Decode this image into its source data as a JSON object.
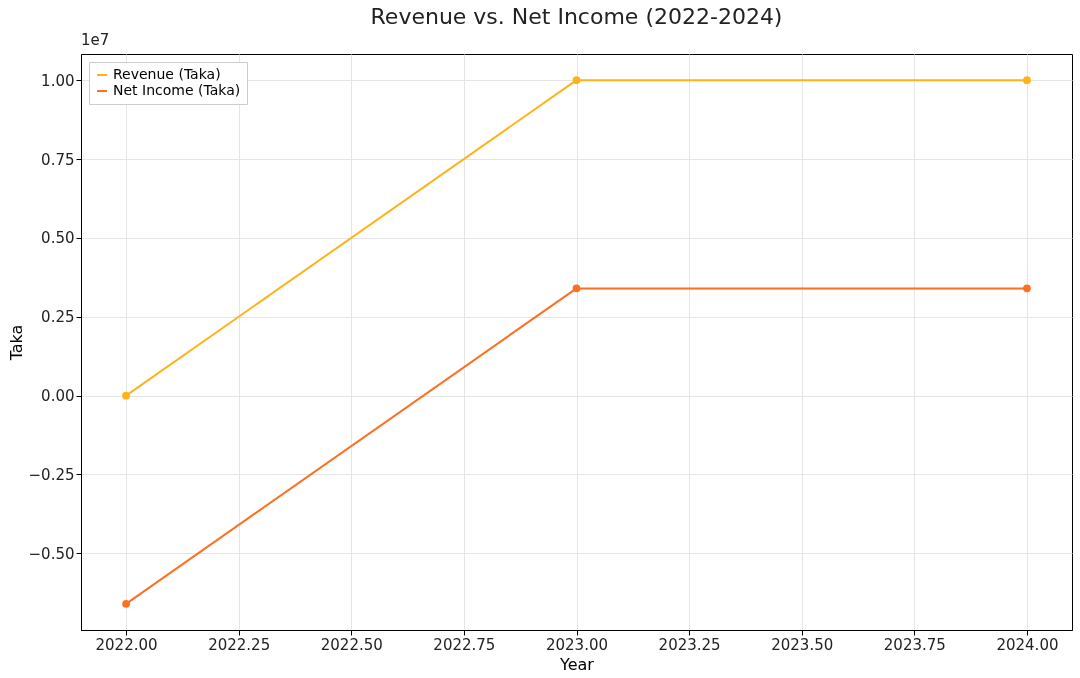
{
  "chart_data": {
    "type": "line",
    "title": "Revenue vs. Net Income (2022-2024)",
    "xlabel": "Year",
    "ylabel": "Taka",
    "annotations": [
      "1e7"
    ],
    "x": [
      2022,
      2023,
      2024
    ],
    "series": [
      {
        "name": "Revenue (Taka)",
        "color": "#ffb31a",
        "values": [
          0.0,
          1.0,
          1.0
        ]
      },
      {
        "name": "Net Income (Taka)",
        "color": "#ff6f20",
        "values": [
          -0.66,
          0.34,
          0.34
        ]
      }
    ],
    "xlim": [
      2021.9,
      2024.1
    ],
    "xticks": [
      {
        "value": 2022,
        "label": "2022.00"
      },
      {
        "value": 2022.25,
        "label": "2022.25"
      },
      {
        "value": 2022.5,
        "label": "2022.50"
      },
      {
        "value": 2022.75,
        "label": "2022.75"
      },
      {
        "value": 2023,
        "label": "2023.00"
      },
      {
        "value": 2023.25,
        "label": "2023.25"
      },
      {
        "value": 2023.5,
        "label": "2023.50"
      },
      {
        "value": 2023.75,
        "label": "2023.75"
      },
      {
        "value": 2024,
        "label": "2024.00"
      }
    ],
    "ylim": [
      -0.743,
      1.083
    ],
    "yticks": [
      {
        "value": -0.5,
        "label": "−0.50"
      },
      {
        "value": -0.25,
        "label": "−0.25"
      },
      {
        "value": 0,
        "label": "0.00"
      },
      {
        "value": 0.25,
        "label": "0.25"
      },
      {
        "value": 0.5,
        "label": "0.50"
      },
      {
        "value": 0.75,
        "label": "0.75"
      },
      {
        "value": 1.0,
        "label": "1.00"
      }
    ],
    "grid": true,
    "legend": "top left",
    "marker": "circle",
    "line_style": "solid"
  }
}
